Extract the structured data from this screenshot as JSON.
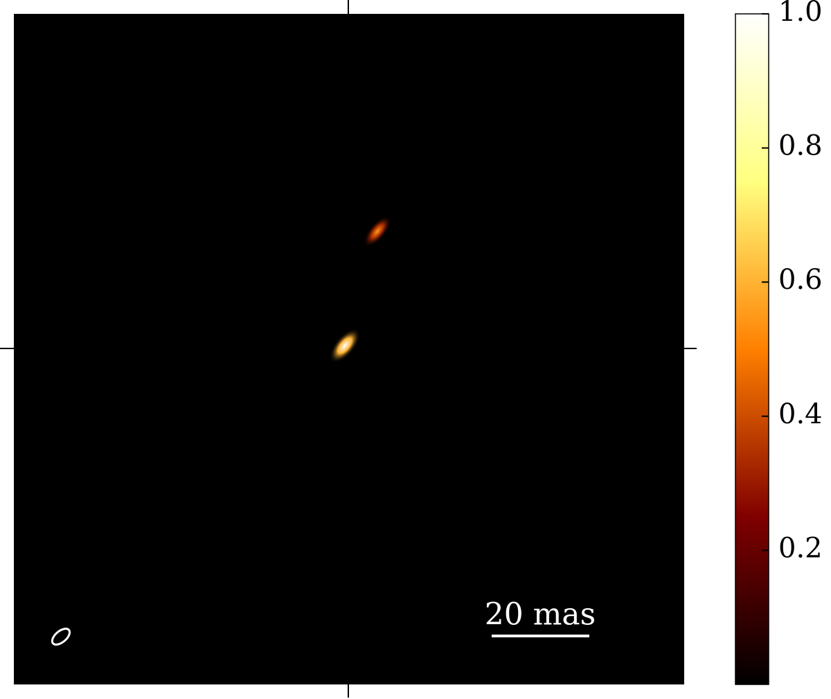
{
  "chart_data": {
    "type": "image",
    "scale_bar": "20 mas",
    "values": [
      1.0,
      0.55
    ],
    "clim": [
      0,
      1
    ],
    "colorbar_ticks": [
      0.2,
      0.4,
      0.6,
      0.8,
      {
        "value": 1.0,
        "label": "1.0"
      }
    ]
  }
}
